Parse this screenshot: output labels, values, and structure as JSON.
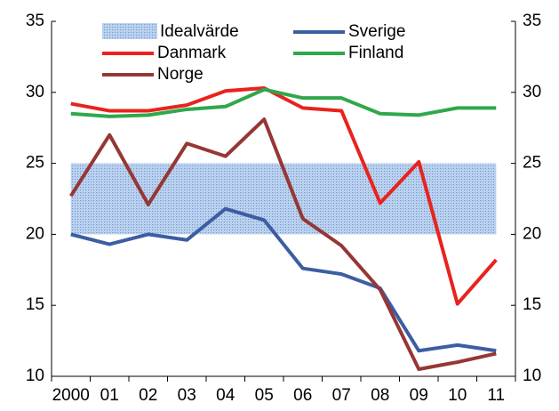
{
  "chart_data": {
    "type": "line",
    "categories": [
      "2000",
      "01",
      "02",
      "03",
      "04",
      "05",
      "06",
      "07",
      "08",
      "09",
      "10",
      "11"
    ],
    "band": {
      "name": "Idealvärde",
      "range": [
        20,
        25
      ],
      "color": "#a8c3e6"
    },
    "series": [
      {
        "name": "Sverige",
        "color": "#3d5da3",
        "values": [
          20.0,
          19.3,
          20.0,
          19.6,
          21.8,
          21.0,
          17.6,
          17.2,
          16.2,
          11.8,
          12.2,
          11.8
        ]
      },
      {
        "name": "Danmark",
        "color": "#e8231d",
        "values": [
          29.2,
          28.7,
          28.7,
          29.1,
          30.1,
          30.3,
          28.9,
          28.7,
          22.2,
          25.1,
          15.1,
          18.2
        ]
      },
      {
        "name": "Finland",
        "color": "#2fa84b",
        "values": [
          28.5,
          28.3,
          28.4,
          28.8,
          29.0,
          30.2,
          29.6,
          29.6,
          28.5,
          28.4,
          28.9,
          28.9
        ]
      },
      {
        "name": "Norge",
        "color": "#953735",
        "values": [
          22.7,
          27.0,
          22.1,
          26.4,
          25.5,
          28.1,
          21.1,
          19.2,
          16.1,
          10.5,
          11.0,
          11.6
        ]
      }
    ],
    "ylim": [
      10,
      35
    ],
    "yticks": [
      10,
      15,
      20,
      25,
      30,
      35
    ],
    "y2lim": [
      10,
      35
    ],
    "y2ticks": [
      10,
      15,
      20,
      25,
      30,
      35
    ],
    "legend": "top"
  }
}
